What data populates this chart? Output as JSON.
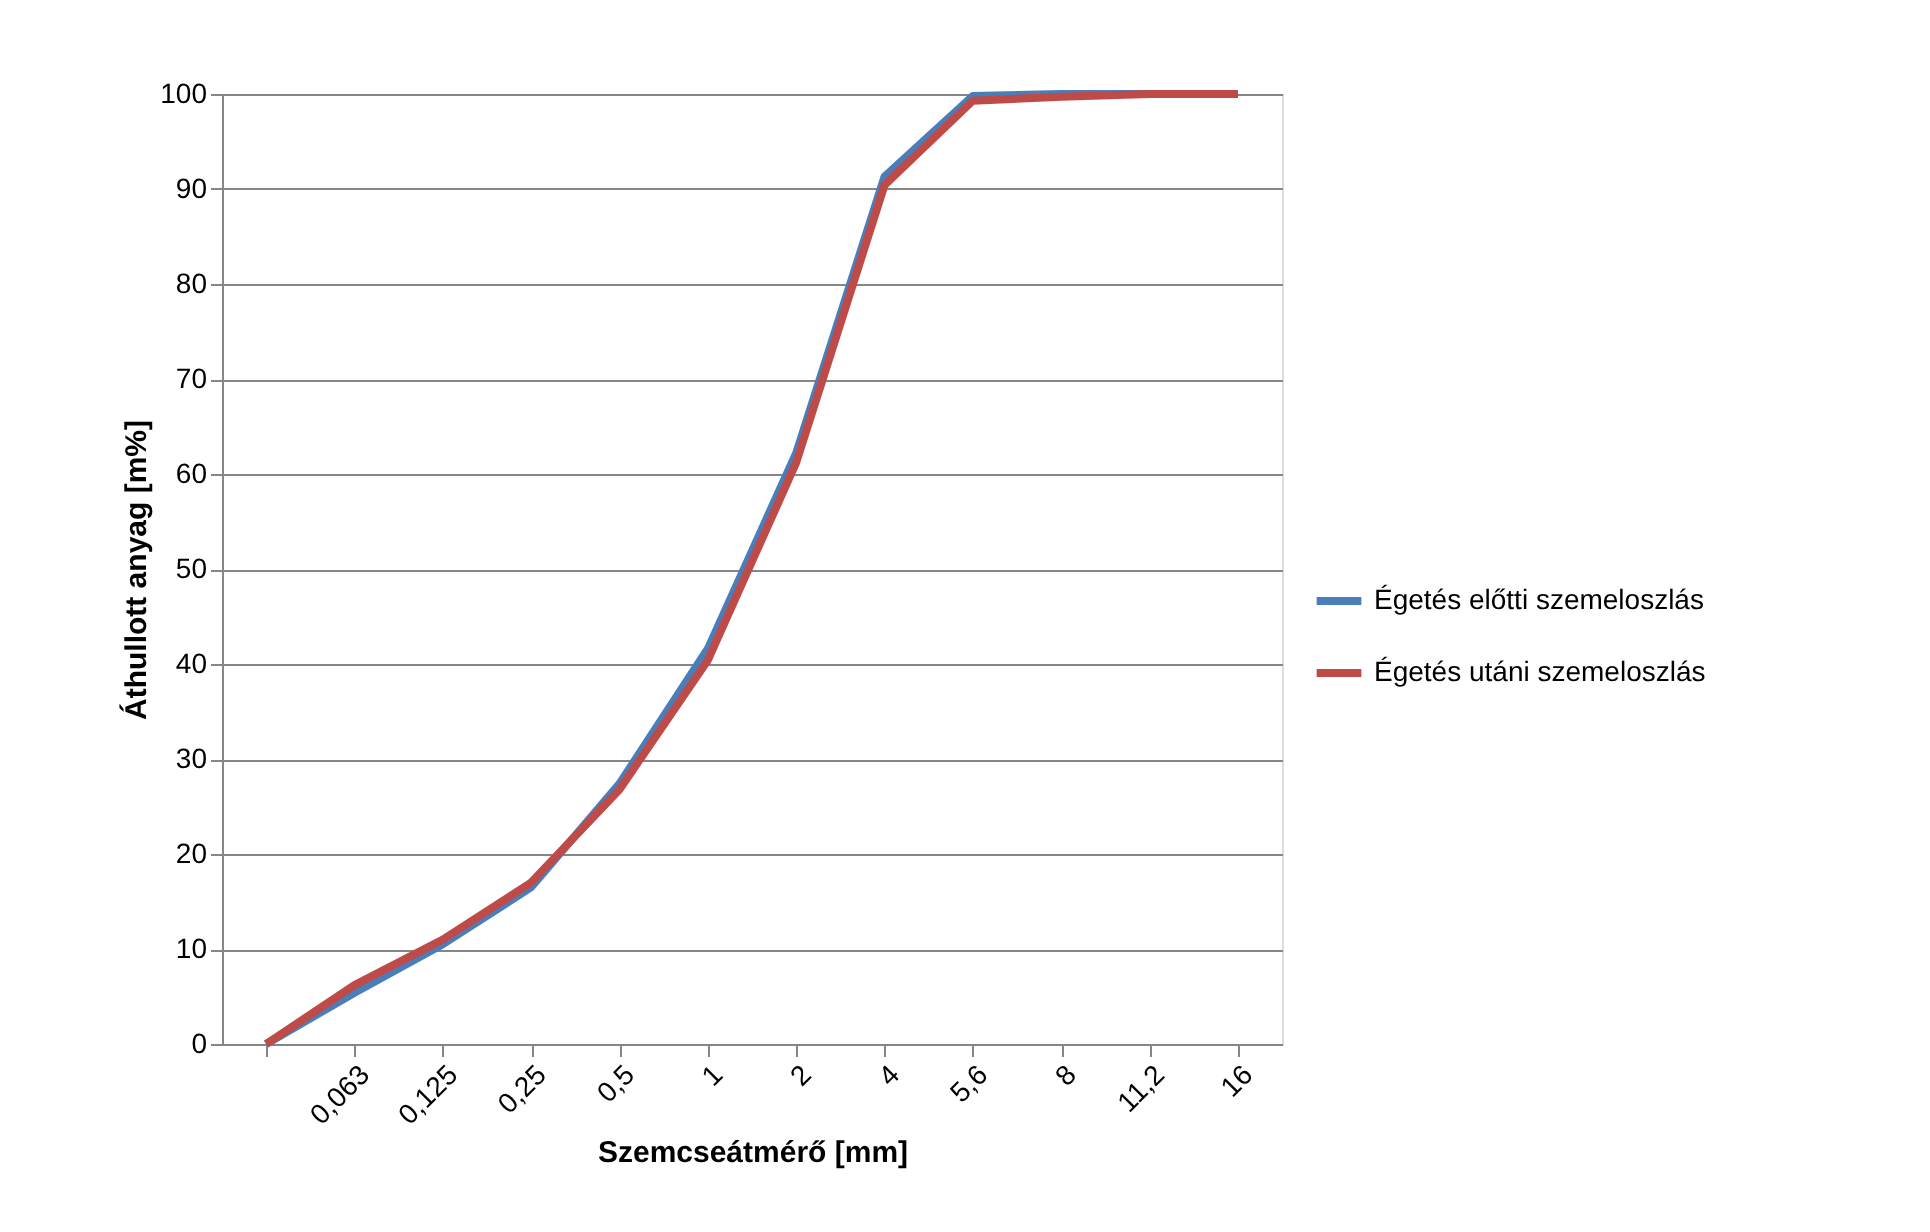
{
  "chart_data": {
    "type": "line",
    "xlabel": "Szemcseátmérő [mm]",
    "ylabel": "Áthullott anyag [m%]",
    "categories": [
      null,
      "0,063",
      "0,125",
      "0,25",
      "0,5",
      "1",
      "2",
      "4",
      "5,6",
      "8",
      "11,2",
      "16"
    ],
    "series": [
      {
        "name": "Égetés előtti szemeloszlás",
        "color": "#4a7ebb",
        "values": [
          0,
          5.4,
          10.5,
          16.5,
          27.4,
          41.6,
          62.2,
          91.3,
          99.8,
          100,
          100,
          100
        ]
      },
      {
        "name": "Égetés utáni szemeloszlás",
        "color": "#be4b48",
        "values": [
          0,
          6.2,
          11,
          17,
          26.8,
          40.4,
          61.2,
          90.4,
          99.3,
          99.7,
          100,
          100
        ]
      }
    ],
    "ylim": [
      0,
      100
    ],
    "yticks": [
      0,
      10,
      20,
      30,
      40,
      50,
      60,
      70,
      80,
      90,
      100
    ],
    "grid": "y",
    "legend": "right",
    "marker": "none",
    "line_style": "solid"
  }
}
